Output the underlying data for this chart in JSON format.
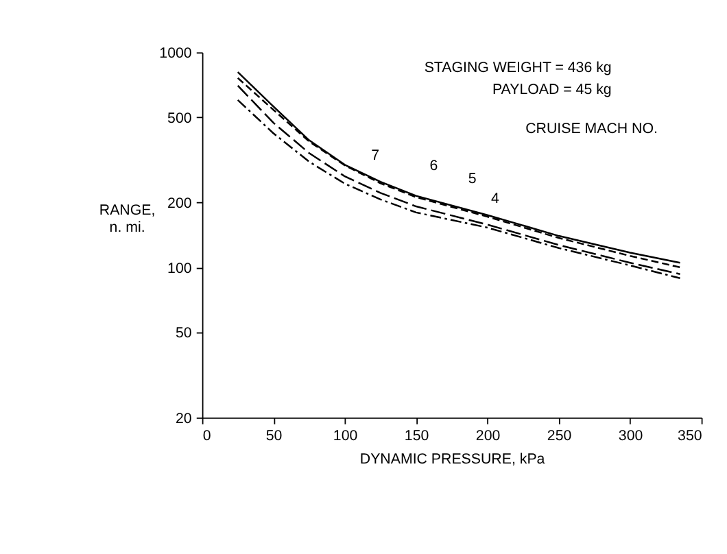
{
  "chart_data": {
    "type": "line",
    "xlabel": "DYNAMIC PRESSURE, kPa",
    "ylabel": "RANGE,\nn. mi.",
    "log": "y",
    "xlim": [
      0,
      350
    ],
    "xticks": [
      0,
      50,
      100,
      150,
      200,
      250,
      300,
      350
    ],
    "ylim": [
      20,
      1000
    ],
    "yticks": [
      20,
      50,
      100,
      200,
      500,
      1000
    ],
    "grid": false,
    "marker": "none",
    "x": [
      25,
      50,
      75,
      100,
      125,
      150,
      200,
      250,
      300,
      335
    ],
    "series": [
      {
        "color": "#000000",
        "line_style": "solid",
        "values": [
          810,
          560,
          390,
          300,
          250,
          215,
          175,
          140,
          117,
          105
        ]
      },
      {
        "color": "#000000",
        "line_style": "dashed",
        "values": [
          760,
          540,
          385,
          298,
          246,
          212,
          172,
          137,
          113,
          100
        ]
      },
      {
        "color": "#000000",
        "line_style": "longdash",
        "values": [
          700,
          470,
          340,
          265,
          222,
          192,
          158,
          127,
          105,
          93
        ]
      },
      {
        "color": "#000000",
        "line_style": "dashdot",
        "values": [
          600,
          420,
          310,
          245,
          207,
          180,
          153,
          123,
          102,
          89
        ]
      }
    ],
    "annotations": [
      "STAGING WEIGHT = 436 kg",
      "PAYLOAD =  45 kg",
      "CRUISE MACH NO.",
      {
        "text": "7",
        "x": 116,
        "y": 251
      },
      {
        "text": "6",
        "x": 157,
        "y": 224
      },
      {
        "text": "5",
        "x": 184,
        "y": 195
      },
      {
        "text": "4",
        "x": 200,
        "y": 158
      }
    ]
  }
}
